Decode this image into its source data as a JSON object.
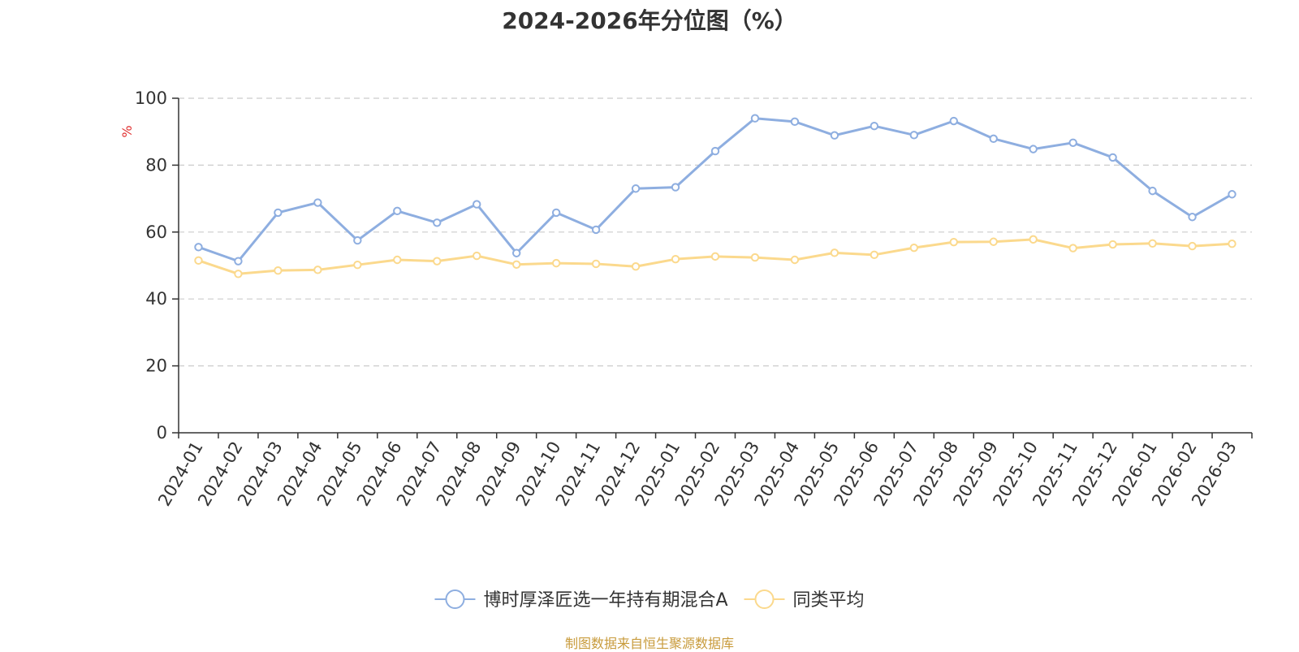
{
  "chart_data": {
    "type": "line",
    "title": "2024-2026年分位图（%）",
    "ylabel": "%",
    "ylim": [
      0,
      100
    ],
    "yticks": [
      0,
      20,
      40,
      60,
      80,
      100
    ],
    "grid": "horizontal dashed",
    "legend_position": "bottom-center",
    "categories": [
      "2024-01",
      "2024-02",
      "2024-03",
      "2024-04",
      "2024-05",
      "2024-06",
      "2024-07",
      "2024-08",
      "2024-09",
      "2024-10",
      "2024-11",
      "2024-12",
      "2025-01",
      "2025-02",
      "2025-03",
      "2025-04",
      "2025-05",
      "2025-06",
      "2025-07",
      "2025-08",
      "2025-09",
      "2025-10",
      "2025-11",
      "2025-12",
      "2026-01",
      "2026-02",
      "2026-03"
    ],
    "series": [
      {
        "name": "博时厚泽匠选一年持有期混合A",
        "color": "#8eaee0",
        "values": [
          55.5,
          51.3,
          65.8,
          68.8,
          57.5,
          66.3,
          62.8,
          68.3,
          53.7,
          65.8,
          60.7,
          73.0,
          73.4,
          84.2,
          94.0,
          93.0,
          88.9,
          91.7,
          89.0,
          93.2,
          87.9,
          84.8,
          86.7,
          82.3,
          72.3,
          64.5,
          71.3
        ]
      },
      {
        "name": "同类平均",
        "color": "#fbd98d",
        "values": [
          51.5,
          47.5,
          48.5,
          48.7,
          50.2,
          51.7,
          51.3,
          52.9,
          50.3,
          50.7,
          50.5,
          49.7,
          51.9,
          52.7,
          52.4,
          51.7,
          53.8,
          53.2,
          55.3,
          57.0,
          57.1,
          57.8,
          55.2,
          56.3,
          56.6,
          55.8,
          56.5
        ]
      }
    ]
  },
  "source_note": "制图数据来自恒生聚源数据库"
}
